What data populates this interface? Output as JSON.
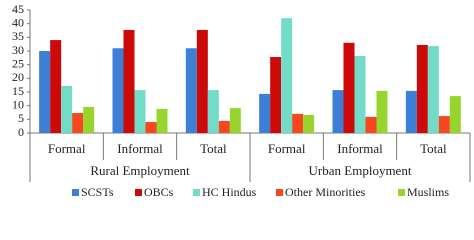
{
  "chart_data": {
    "type": "bar",
    "groups": [
      {
        "label": "Rural Employment",
        "categories": [
          "Formal",
          "Informal",
          "Total"
        ]
      },
      {
        "label": "Urban Employment",
        "categories": [
          "Formal",
          "Informal",
          "Total"
        ]
      }
    ],
    "series": [
      {
        "name": "SCSTs",
        "color": "#3d7fd6",
        "values": [
          30,
          31,
          31,
          14.3,
          15.7,
          15.4
        ]
      },
      {
        "name": "OBCs",
        "color": "#cc0a0a",
        "values": [
          34,
          37.7,
          37.7,
          27.8,
          33,
          32.2
        ]
      },
      {
        "name": "HC Hindus",
        "color": "#72dcc8",
        "values": [
          17.2,
          15.7,
          15.7,
          42,
          28.2,
          31.8
        ]
      },
      {
        "name": "Other Minorities",
        "color": "#f5481e",
        "values": [
          7.3,
          4,
          4.4,
          7,
          5.9,
          6.2
        ]
      },
      {
        "name": "Muslims",
        "color": "#98d42e",
        "values": [
          9.5,
          8.8,
          9.1,
          6.6,
          15.4,
          13.5
        ]
      }
    ],
    "ylim": [
      0,
      45
    ],
    "yticks": [
      0,
      5,
      10,
      15,
      20,
      25,
      30,
      35,
      40,
      45
    ],
    "grid": false,
    "legend": "bottom"
  }
}
